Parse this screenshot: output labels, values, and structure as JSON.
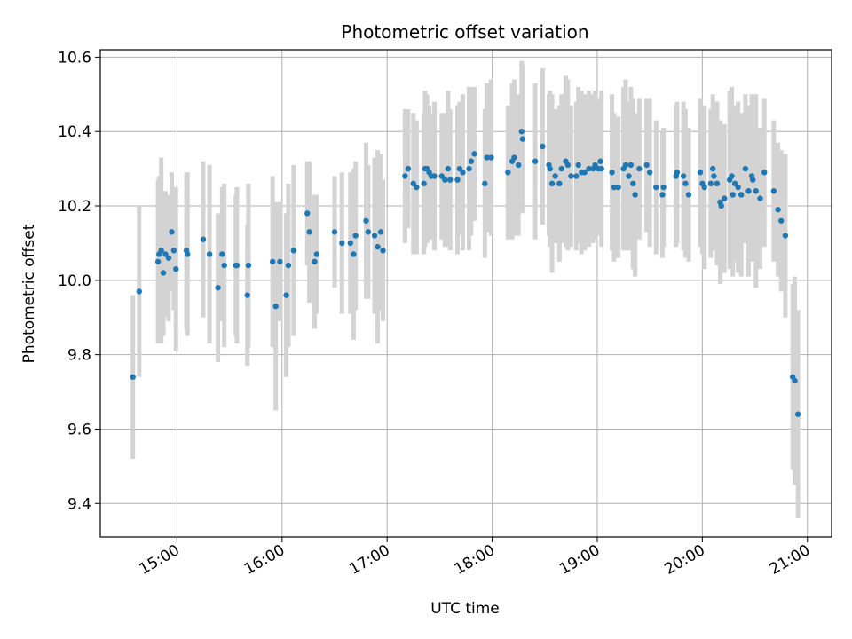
{
  "chart_data": {
    "type": "scatter",
    "title": "Photometric offset variation",
    "xlabel": "UTC time",
    "ylabel": "Photometric offset",
    "grid": true,
    "xlim_hours": [
      14.27,
      21.23
    ],
    "ylim": [
      9.31,
      10.62
    ],
    "x_ticks": [
      {
        "value": 15,
        "label": "15:00"
      },
      {
        "value": 16,
        "label": "16:00"
      },
      {
        "value": 17,
        "label": "17:00"
      },
      {
        "value": 18,
        "label": "18:00"
      },
      {
        "value": 19,
        "label": "19:00"
      },
      {
        "value": 20,
        "label": "20:00"
      },
      {
        "value": 21,
        "label": "21:00"
      }
    ],
    "y_ticks": [
      {
        "value": 9.4,
        "label": "9.4"
      },
      {
        "value": 9.6,
        "label": "9.6"
      },
      {
        "value": 9.8,
        "label": "9.8"
      },
      {
        "value": 10.0,
        "label": "10.0"
      },
      {
        "value": 10.2,
        "label": "10.2"
      },
      {
        "value": 10.4,
        "label": "10.4"
      },
      {
        "value": 10.6,
        "label": "10.6"
      }
    ],
    "point_color": "#1f77b4",
    "errorbar_color": "#d3d3d3",
    "series": [
      {
        "name": "offset",
        "points": [
          [
            14.58,
            9.74,
            0.22
          ],
          [
            14.64,
            9.97,
            0.23
          ],
          [
            14.82,
            10.05,
            0.22
          ],
          [
            14.83,
            10.07,
            0.21
          ],
          [
            14.85,
            10.08,
            0.25
          ],
          [
            14.87,
            10.02,
            0.17
          ],
          [
            14.89,
            10.07,
            0.17
          ],
          [
            14.92,
            10.06,
            0.17
          ],
          [
            14.95,
            10.13,
            0.16
          ],
          [
            14.97,
            10.08,
            0.16
          ],
          [
            14.99,
            10.03,
            0.22
          ],
          [
            15.09,
            10.08,
            0.21
          ],
          [
            15.1,
            10.07,
            0.22
          ],
          [
            15.25,
            10.11,
            0.21
          ],
          [
            15.31,
            10.07,
            0.24
          ],
          [
            15.39,
            9.98,
            0.2
          ],
          [
            15.43,
            10.07,
            0.18
          ],
          [
            15.45,
            10.04,
            0.22
          ],
          [
            15.56,
            10.04,
            0.19
          ],
          [
            15.57,
            10.04,
            0.21
          ],
          [
            15.67,
            9.96,
            0.19
          ],
          [
            15.68,
            10.04,
            0.22
          ],
          [
            15.91,
            10.05,
            0.23
          ],
          [
            15.94,
            9.93,
            0.28
          ],
          [
            15.98,
            10.05,
            0.16
          ],
          [
            16.04,
            9.96,
            0.22
          ],
          [
            16.06,
            10.04,
            0.22
          ],
          [
            16.11,
            10.08,
            0.23
          ],
          [
            16.24,
            10.18,
            0.14
          ],
          [
            16.26,
            10.13,
            0.19
          ],
          [
            16.31,
            10.05,
            0.18
          ],
          [
            16.33,
            10.07,
            0.16
          ],
          [
            16.5,
            10.13,
            0.15
          ],
          [
            16.57,
            10.1,
            0.19
          ],
          [
            16.65,
            10.1,
            0.19
          ],
          [
            16.68,
            10.07,
            0.23
          ],
          [
            16.7,
            10.12,
            0.2
          ],
          [
            16.8,
            10.16,
            0.21
          ],
          [
            16.82,
            10.13,
            0.18
          ],
          [
            16.88,
            10.12,
            0.21
          ],
          [
            16.91,
            10.09,
            0.26
          ],
          [
            16.94,
            10.13,
            0.21
          ],
          [
            16.96,
            10.08,
            0.19
          ],
          [
            17.17,
            10.28,
            0.18
          ],
          [
            17.2,
            10.3,
            0.16
          ],
          [
            17.25,
            10.26,
            0.19
          ],
          [
            17.28,
            10.25,
            0.18
          ],
          [
            17.35,
            10.26,
            0.19
          ],
          [
            17.36,
            10.3,
            0.21
          ],
          [
            17.38,
            10.3,
            0.2
          ],
          [
            17.4,
            10.29,
            0.18
          ],
          [
            17.42,
            10.28,
            0.17
          ],
          [
            17.45,
            10.28,
            0.2
          ],
          [
            17.52,
            10.28,
            0.17
          ],
          [
            17.55,
            10.27,
            0.18
          ],
          [
            17.58,
            10.3,
            0.21
          ],
          [
            17.6,
            10.27,
            0.19
          ],
          [
            17.67,
            10.27,
            0.2
          ],
          [
            17.69,
            10.3,
            0.18
          ],
          [
            17.72,
            10.29,
            0.21
          ],
          [
            17.78,
            10.3,
            0.22
          ],
          [
            17.8,
            10.32,
            0.2
          ],
          [
            17.83,
            10.34,
            0.18
          ],
          [
            17.93,
            10.26,
            0.2
          ],
          [
            17.95,
            10.33,
            0.2
          ],
          [
            17.99,
            10.33,
            0.21
          ],
          [
            18.15,
            10.29,
            0.18
          ],
          [
            18.19,
            10.32,
            0.21
          ],
          [
            18.21,
            10.33,
            0.21
          ],
          [
            18.25,
            10.31,
            0.19
          ],
          [
            18.28,
            10.4,
            0.19
          ],
          [
            18.29,
            10.38,
            0.2
          ],
          [
            18.41,
            10.32,
            0.21
          ],
          [
            18.48,
            10.36,
            0.21
          ],
          [
            18.54,
            10.31,
            0.19
          ],
          [
            18.55,
            10.3,
            0.21
          ],
          [
            18.57,
            10.26,
            0.24
          ],
          [
            18.6,
            10.28,
            0.18
          ],
          [
            18.64,
            10.26,
            0.21
          ],
          [
            18.66,
            10.3,
            0.2
          ],
          [
            18.7,
            10.32,
            0.23
          ],
          [
            18.72,
            10.31,
            0.23
          ],
          [
            18.75,
            10.28,
            0.19
          ],
          [
            18.8,
            10.28,
            0.2
          ],
          [
            18.82,
            10.31,
            0.21
          ],
          [
            18.85,
            10.29,
            0.22
          ],
          [
            18.88,
            10.29,
            0.21
          ],
          [
            18.92,
            10.3,
            0.21
          ],
          [
            18.96,
            10.3,
            0.2
          ],
          [
            18.98,
            10.31,
            0.2
          ],
          [
            19.01,
            10.3,
            0.18
          ],
          [
            19.03,
            10.32,
            0.17
          ],
          [
            19.04,
            10.3,
            0.21
          ],
          [
            19.14,
            10.29,
            0.21
          ],
          [
            19.16,
            10.25,
            0.2
          ],
          [
            19.2,
            10.25,
            0.19
          ],
          [
            19.25,
            10.3,
            0.22
          ],
          [
            19.27,
            10.31,
            0.23
          ],
          [
            19.3,
            10.28,
            0.2
          ],
          [
            19.32,
            10.31,
            0.21
          ],
          [
            19.34,
            10.26,
            0.23
          ],
          [
            19.36,
            10.23,
            0.22
          ],
          [
            19.4,
            10.3,
            0.19
          ],
          [
            19.47,
            10.31,
            0.18
          ],
          [
            19.5,
            10.29,
            0.2
          ],
          [
            19.56,
            10.25,
            0.18
          ],
          [
            19.62,
            10.23,
            0.17
          ],
          [
            19.63,
            10.25,
            0.16
          ],
          [
            19.75,
            10.28,
            0.19
          ],
          [
            19.76,
            10.29,
            0.19
          ],
          [
            19.82,
            10.28,
            0.2
          ],
          [
            19.84,
            10.26,
            0.2
          ],
          [
            19.87,
            10.23,
            0.18
          ],
          [
            19.98,
            10.29,
            0.2
          ],
          [
            20.0,
            10.26,
            0.19
          ],
          [
            20.02,
            10.25,
            0.22
          ],
          [
            20.08,
            10.26,
            0.2
          ],
          [
            20.1,
            10.3,
            0.2
          ],
          [
            20.11,
            10.28,
            0.2
          ],
          [
            20.14,
            10.26,
            0.22
          ],
          [
            20.17,
            10.21,
            0.22
          ],
          [
            20.18,
            10.2,
            0.18
          ],
          [
            20.21,
            10.22,
            0.2
          ],
          [
            20.26,
            10.27,
            0.24
          ],
          [
            20.28,
            10.28,
            0.24
          ],
          [
            20.29,
            10.23,
            0.22
          ],
          [
            20.31,
            10.26,
            0.21
          ],
          [
            20.34,
            10.25,
            0.23
          ],
          [
            20.37,
            10.23,
            0.22
          ],
          [
            20.41,
            10.3,
            0.2
          ],
          [
            20.44,
            10.24,
            0.23
          ],
          [
            20.47,
            10.28,
            0.22
          ],
          [
            20.48,
            10.27,
            0.22
          ],
          [
            20.51,
            10.24,
            0.26
          ],
          [
            20.55,
            10.22,
            0.19
          ],
          [
            20.59,
            10.29,
            0.2
          ],
          [
            20.68,
            10.24,
            0.19
          ],
          [
            20.72,
            10.19,
            0.18
          ],
          [
            20.75,
            10.16,
            0.19
          ],
          [
            20.79,
            10.12,
            0.22
          ],
          [
            20.86,
            9.74,
            0.25
          ],
          [
            20.88,
            9.73,
            0.28
          ],
          [
            20.91,
            9.64,
            0.28
          ]
        ]
      }
    ]
  }
}
